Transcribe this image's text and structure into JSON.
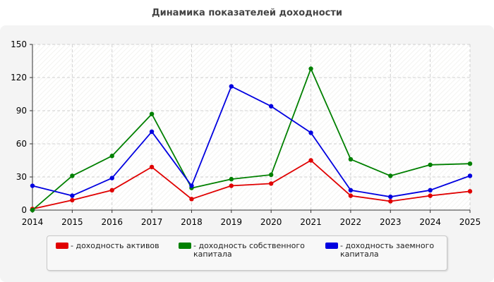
{
  "chart_data": {
    "type": "line",
    "title": "Динамика показателей доходности",
    "xlabel": "",
    "ylabel": "",
    "x": [
      "2014",
      "2015",
      "2016",
      "2017",
      "2018",
      "2019",
      "2020",
      "2021",
      "2022",
      "2023",
      "2024",
      "2025"
    ],
    "ylim": [
      0,
      150
    ],
    "yticks": [
      0,
      30,
      60,
      90,
      120,
      150
    ],
    "grid": true,
    "legend_position": "bottom",
    "series": [
      {
        "name": "- доходность активов",
        "color": "#e00000",
        "values": [
          1,
          9,
          18,
          39,
          10,
          22,
          24,
          45,
          13,
          8,
          13,
          17
        ]
      },
      {
        "name": "- доходность собственного\nкапитала",
        "color": "#008000",
        "values": [
          0,
          31,
          49,
          87,
          20,
          28,
          32,
          128,
          46,
          31,
          41,
          42
        ]
      },
      {
        "name": "- доходность заемного\nкапитала",
        "color": "#0000e0",
        "values": [
          22,
          13,
          29,
          71,
          22,
          112,
          94,
          70,
          18,
          12,
          18,
          31
        ]
      }
    ]
  }
}
